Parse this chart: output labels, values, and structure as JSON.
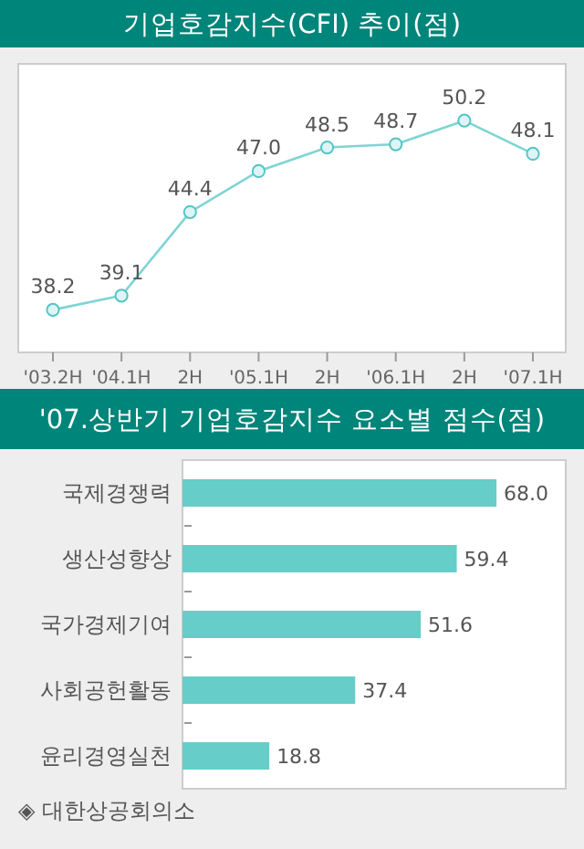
{
  "chart_data": [
    {
      "type": "line",
      "title": "기업호감지수(CFI) 추이(점)",
      "categories": [
        "'03.2H",
        "'04.1H",
        "2H",
        "'05.1H",
        "2H",
        "'06.1H",
        "2H",
        "'07.1H"
      ],
      "values": [
        38.2,
        39.1,
        44.4,
        47.0,
        48.5,
        48.7,
        50.2,
        48.1
      ],
      "value_labels": [
        "38.2",
        "39.1",
        "44.4",
        "47.0",
        "48.5",
        "48.7",
        "50.2",
        "48.1"
      ],
      "color": "#7fd4d4",
      "marker": "circle",
      "ylim": [
        35.5,
        53.8
      ]
    },
    {
      "type": "bar",
      "orientation": "horizontal",
      "title": "'07.상반기 기업호감지수 요소별 점수(점)",
      "categories": [
        "국제경쟁력",
        "생산성향상",
        "국가경제기여",
        "사회공헌활동",
        "윤리경영실천"
      ],
      "values": [
        68.0,
        59.4,
        51.6,
        37.4,
        18.8
      ],
      "value_labels": [
        "68.0",
        "59.4",
        "51.6",
        "37.4",
        "18.8"
      ],
      "color": "#66cdc8",
      "xlim": [
        0,
        83
      ],
      "annotations": [
        "◈ 대한상공회의소"
      ]
    }
  ]
}
